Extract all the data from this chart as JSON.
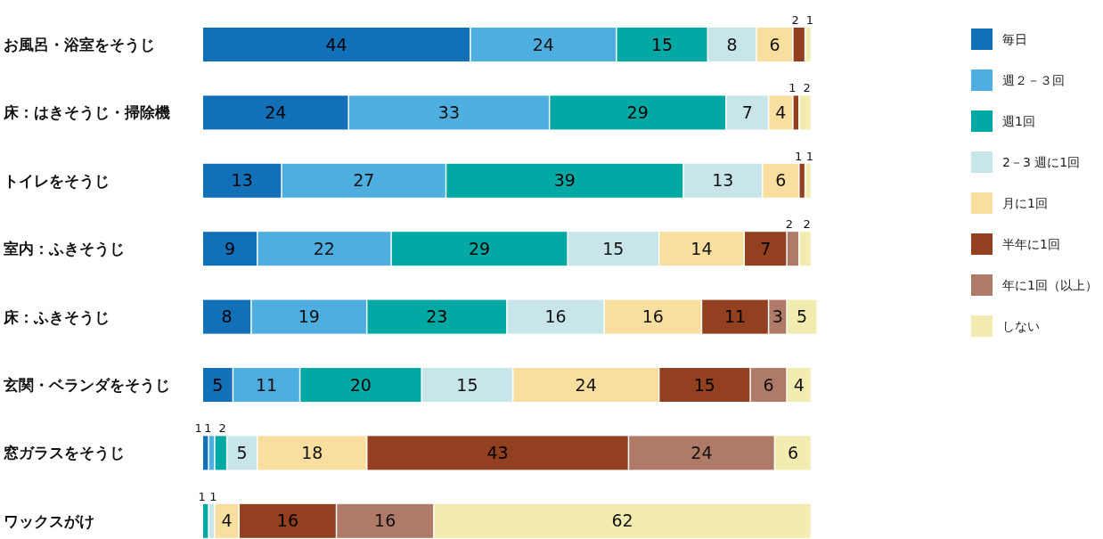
{
  "chart_data": {
    "type": "bar",
    "orientation": "horizontal",
    "stacked": true,
    "data_labels": true,
    "legend": "right",
    "categories": [
      "お風呂・浴室をそうじ",
      "床：はきそうじ・掃除機",
      "トイレをそうじ",
      "室内：ふきそうじ",
      "床：ふきそうじ",
      "玄関・ベランダをそうじ",
      "窓ガラスをそうじ",
      "ワックスがけ"
    ],
    "series": [
      {
        "name": "毎日",
        "color": "#1170b8",
        "values": [
          44,
          24,
          13,
          9,
          8,
          5,
          1,
          null
        ]
      },
      {
        "name": "週２－３回",
        "color": "#4faee0",
        "values": [
          24,
          33,
          27,
          22,
          19,
          11,
          1,
          null
        ]
      },
      {
        "name": "週1回",
        "color": "#00a9a4",
        "values": [
          15,
          29,
          39,
          29,
          23,
          20,
          2,
          1
        ]
      },
      {
        "name": "2－3 週に1回",
        "color": "#c8e6ea",
        "values": [
          8,
          7,
          13,
          15,
          16,
          15,
          5,
          1
        ]
      },
      {
        "name": "月に1回",
        "color": "#f8dfa0",
        "values": [
          6,
          4,
          6,
          14,
          16,
          24,
          18,
          4
        ]
      },
      {
        "name": "半年に1回",
        "color": "#92401f",
        "values": [
          2,
          1,
          1,
          7,
          11,
          15,
          43,
          16
        ]
      },
      {
        "name": "年に1回（以上）",
        "color": "#b07a68",
        "values": [
          null,
          null,
          null,
          2,
          3,
          6,
          24,
          16
        ]
      },
      {
        "name": "しない",
        "color": "#f3ecb0",
        "values": [
          1,
          2,
          1,
          2,
          5,
          4,
          6,
          62
        ]
      }
    ]
  }
}
